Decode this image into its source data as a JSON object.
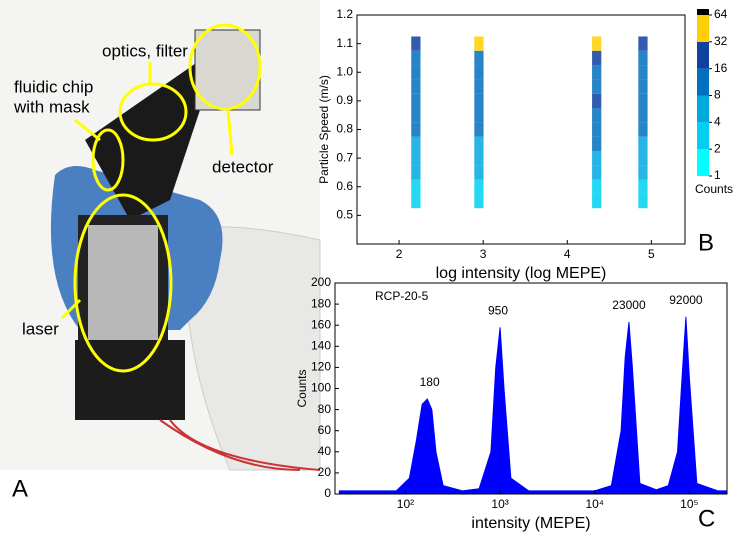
{
  "panel_labels": [
    "A",
    "B",
    "C"
  ],
  "photo": {
    "annotations": [
      "optics, filter",
      "fluidic chip",
      "with mask",
      "detector",
      "laser"
    ]
  },
  "chart_data": [
    {
      "type": "heatmap",
      "xlabel": "log intensity (log MEPE)",
      "ylabel": "Particle Speed (m/s)",
      "xlim": [
        1.5,
        5.4
      ],
      "ylim": [
        0.4,
        1.2
      ],
      "xticks": [
        2,
        3,
        4,
        5
      ],
      "yticks": [
        0.5,
        0.6,
        0.7,
        0.8,
        0.9,
        {
          "value": 1,
          "label": "1.0"
        },
        1.1,
        1.2
      ],
      "x": [
        2.2,
        2.95,
        4.35,
        4.9
      ],
      "y": [
        0.55,
        0.6,
        0.65,
        0.7,
        0.75,
        0.8,
        0.85,
        0.9,
        0.95,
        1,
        1.05,
        1.1
      ],
      "values": [
        [
          2,
          2,
          2,
          2
        ],
        [
          3,
          3,
          3,
          3
        ],
        [
          4,
          4,
          5,
          4
        ],
        [
          5,
          5,
          6,
          6
        ],
        [
          6,
          6,
          8,
          6
        ],
        [
          8,
          8,
          10,
          8
        ],
        [
          10,
          10,
          12,
          10
        ],
        [
          12,
          14,
          16,
          14
        ],
        [
          8,
          10,
          12,
          10
        ],
        [
          8,
          10,
          12,
          10
        ],
        [
          10,
          12,
          16,
          14
        ],
        [
          16,
          32,
          32,
          24
        ]
      ],
      "color_ticks": [
        1,
        2,
        4,
        8,
        16,
        32,
        64
      ],
      "colors": [
        "#00ffff",
        "#00d0f0",
        "#00a8e0",
        "#0070c0",
        "#1040a0",
        "#ffd000",
        "#000000"
      ],
      "colorbar_label": "Counts"
    },
    {
      "type": "area",
      "xlabel": "intensity (MEPE)",
      "ylabel": "Counts",
      "log_x": true,
      "color": "#0000ff",
      "xlim": [
        18,
        250000
      ],
      "ylim": [
        0,
        200
      ],
      "xticks": [
        {
          "value": 100,
          "label": "10²"
        },
        {
          "value": 1000,
          "label": "10³"
        },
        {
          "value": 10000,
          "label": "10⁴"
        },
        {
          "value": 100000,
          "label": "10⁵"
        }
      ],
      "yticks": [
        0,
        20,
        40,
        60,
        80,
        100,
        120,
        140,
        160,
        180,
        200
      ],
      "x": [
        20,
        80,
        110,
        130,
        150,
        170,
        190,
        210,
        250,
        400,
        600,
        800,
        900,
        1000,
        1100,
        1300,
        2000,
        5000,
        10000,
        15000,
        19000,
        21000,
        23000,
        25000,
        30000,
        45000,
        60000,
        75000,
        85000,
        92000,
        100000,
        120000,
        200000,
        250000
      ],
      "values": [
        3,
        3,
        15,
        50,
        85,
        90,
        80,
        40,
        8,
        3,
        5,
        40,
        120,
        158,
        100,
        15,
        3,
        3,
        3,
        8,
        60,
        130,
        163,
        120,
        10,
        4,
        8,
        40,
        120,
        168,
        110,
        10,
        3,
        3
      ],
      "annotation": "RCP-20-5",
      "peaks": [
        {
          "value": 180,
          "label": "180"
        },
        {
          "value": 950,
          "label": "950"
        },
        {
          "value": 23000,
          "label": "23000"
        },
        {
          "value": 92000,
          "label": "92000"
        }
      ]
    }
  ]
}
